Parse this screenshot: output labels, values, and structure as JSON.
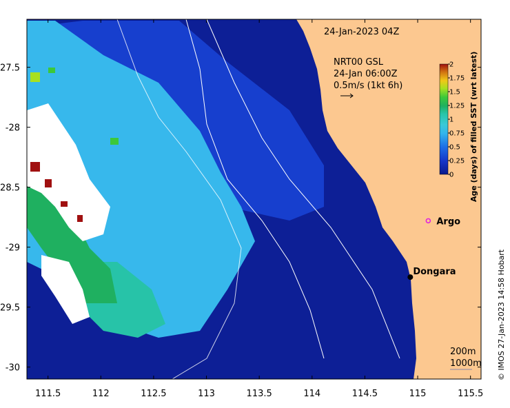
{
  "map": {
    "date_label": "24-Jan-2023 04Z",
    "current_info": {
      "line1": "NRT00 GSL",
      "line2": "24-Jan 06:00Z",
      "line3": "0.5m/s (1kt 6h)"
    },
    "places": [
      {
        "name": "Argo",
        "lon": 115.1,
        "lat": -28.78,
        "marker": "ring",
        "color": "#e020e0"
      },
      {
        "name": "Dongara",
        "lon": 114.93,
        "lat": -29.25,
        "marker": "dot",
        "color": "#000000"
      }
    ],
    "contours": {
      "line1": "200m",
      "line2": "1000m"
    },
    "credit": "© IMOS 27-Jan-2023 14:58 Hobart",
    "x_ticks": [
      "111.5",
      "112",
      "112.5",
      "113",
      "113.5",
      "114",
      "114.5",
      "115",
      "115.5"
    ],
    "y_ticks": [
      "-27.5",
      "-28",
      "-28.5",
      "-29",
      "-29.5",
      "-30"
    ],
    "extent": {
      "lon_min": 111.3,
      "lon_max": 115.6,
      "lat_min": -30.1,
      "lat_max": -27.1
    },
    "land_color": "#fcc890",
    "no_data_color": "#ffffff"
  },
  "colorbar": {
    "title": "Age (days) of filled SST (wrt latest)",
    "ticks": [
      "2",
      "1.75",
      "1.5",
      "1.25",
      "1",
      "0.75",
      "0.5",
      "0.25",
      "0"
    ],
    "range": [
      0,
      2
    ],
    "colors": [
      "#0a1a8c",
      "#1535c8",
      "#1d6fe6",
      "#33b4ec",
      "#3ac9d8",
      "#26c5a8",
      "#1fb060",
      "#3cc83a",
      "#a8e020",
      "#f0c818",
      "#d07010",
      "#a01010"
    ]
  }
}
